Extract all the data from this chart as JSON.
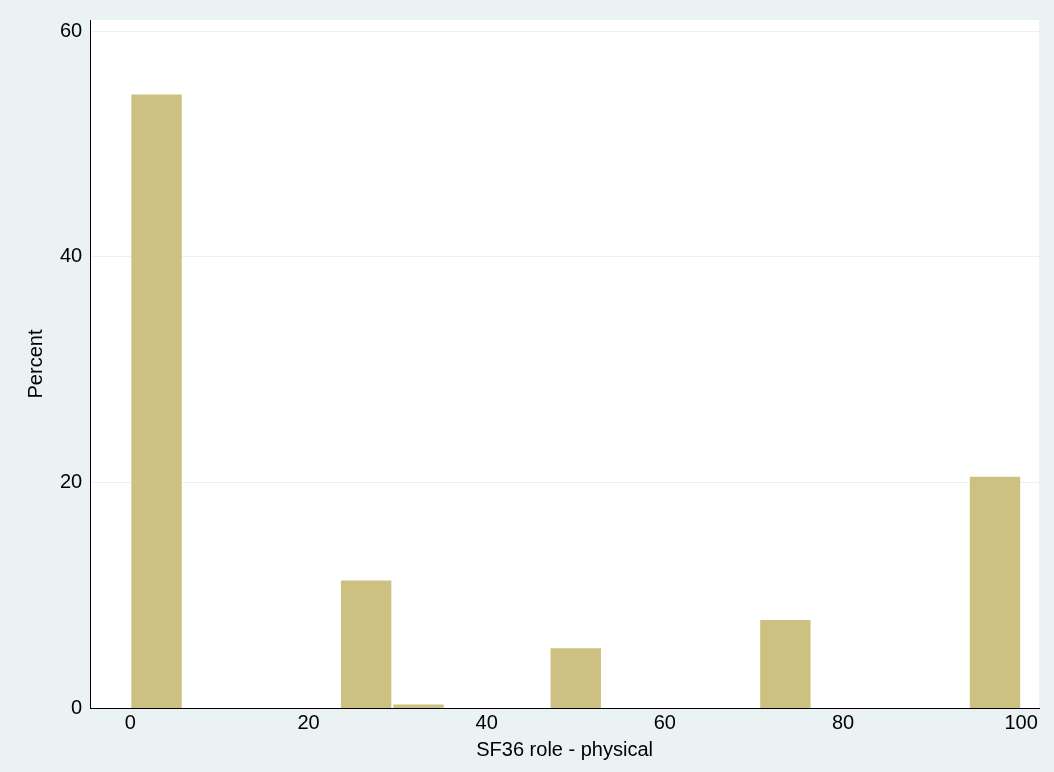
{
  "chart_data": {
    "type": "histogram",
    "xlabel": "SF36 role - physical",
    "ylabel": "Percent",
    "bins": [
      0,
      5.88,
      11.76,
      17.65,
      23.53,
      29.41,
      35.29,
      41.18,
      47.06,
      52.94,
      58.82,
      64.71,
      70.59,
      76.47,
      82.35,
      88.24,
      94.12,
      100
    ],
    "values": [
      54.4,
      0,
      0,
      0,
      11.3,
      0.3,
      0,
      0,
      5.3,
      0,
      0,
      0,
      7.8,
      0,
      0,
      0,
      20.5
    ],
    "color": "#ccc180",
    "xlim": [
      -4.5,
      102
    ],
    "ylim": [
      0,
      61
    ],
    "xticks": [
      0,
      20,
      40,
      60,
      80,
      100
    ],
    "yticks": [
      0,
      20,
      40,
      60
    ],
    "grid": "y",
    "legend": false
  }
}
